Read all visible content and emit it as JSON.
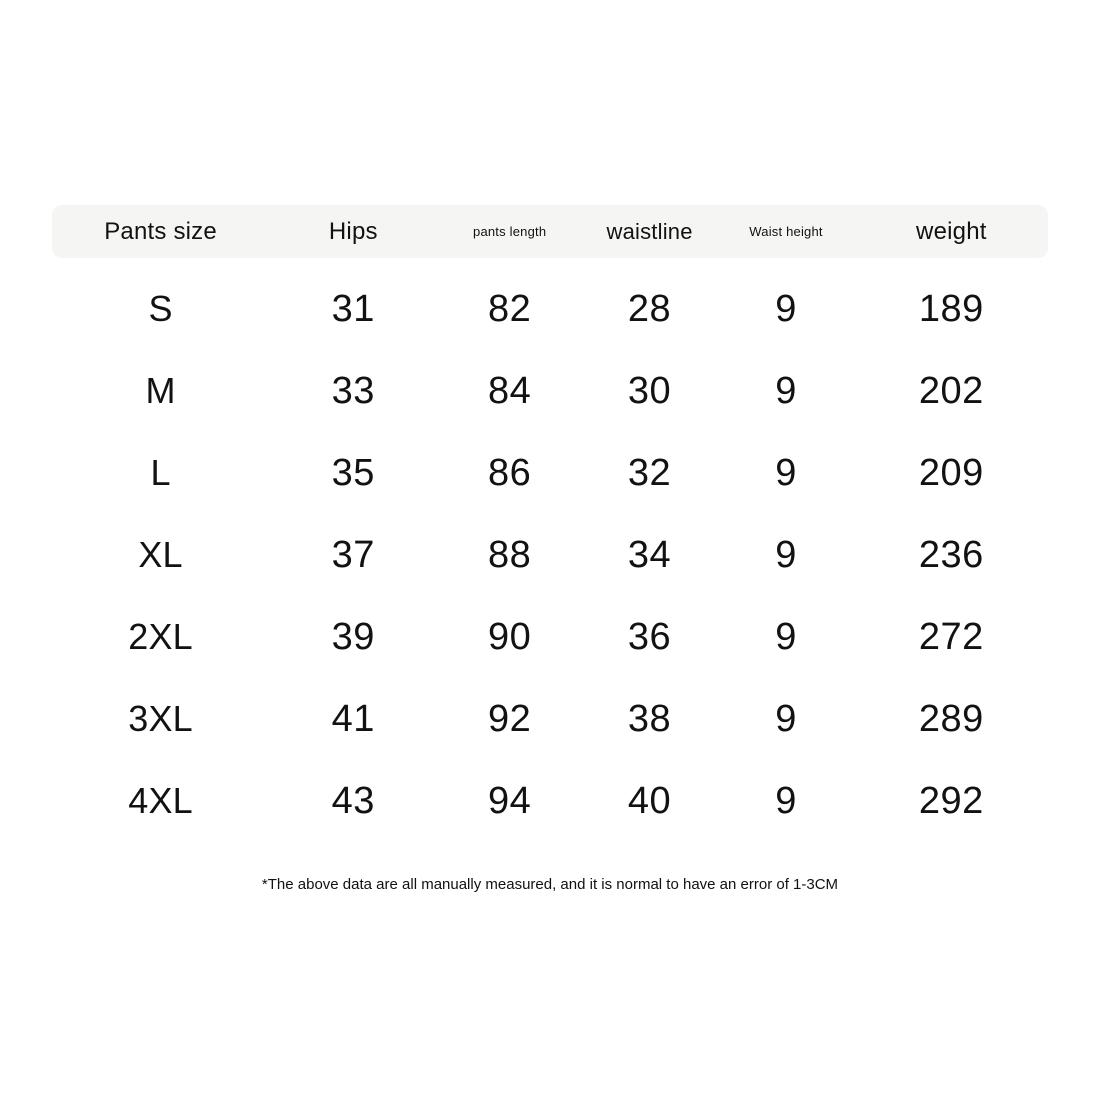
{
  "page": {
    "background": "#ffffff",
    "text_color": "#121212",
    "header_band_color": "#f5f5f4"
  },
  "chart_data": {
    "type": "table",
    "title": "",
    "columns": [
      "Pants size",
      "Hips",
      "pants length",
      "waistline",
      "Waist height",
      "weight"
    ],
    "rows": [
      [
        "S",
        "31",
        "82",
        "28",
        "9",
        "189"
      ],
      [
        "M",
        "33",
        "84",
        "30",
        "9",
        "202"
      ],
      [
        "L",
        "35",
        "86",
        "32",
        "9",
        "209"
      ],
      [
        "XL",
        "37",
        "88",
        "34",
        "9",
        "236"
      ],
      [
        "2XL",
        "39",
        "90",
        "36",
        "9",
        "272"
      ],
      [
        "3XL",
        "41",
        "92",
        "38",
        "9",
        "289"
      ],
      [
        "4XL",
        "43",
        "94",
        "40",
        "9",
        "292"
      ]
    ],
    "footnote": "*The above data are all manually measured, and it is normal to have an error of 1-3CM",
    "layout": {
      "grid": "off",
      "header_background": "#f5f5f4",
      "row_borders": "none"
    }
  }
}
